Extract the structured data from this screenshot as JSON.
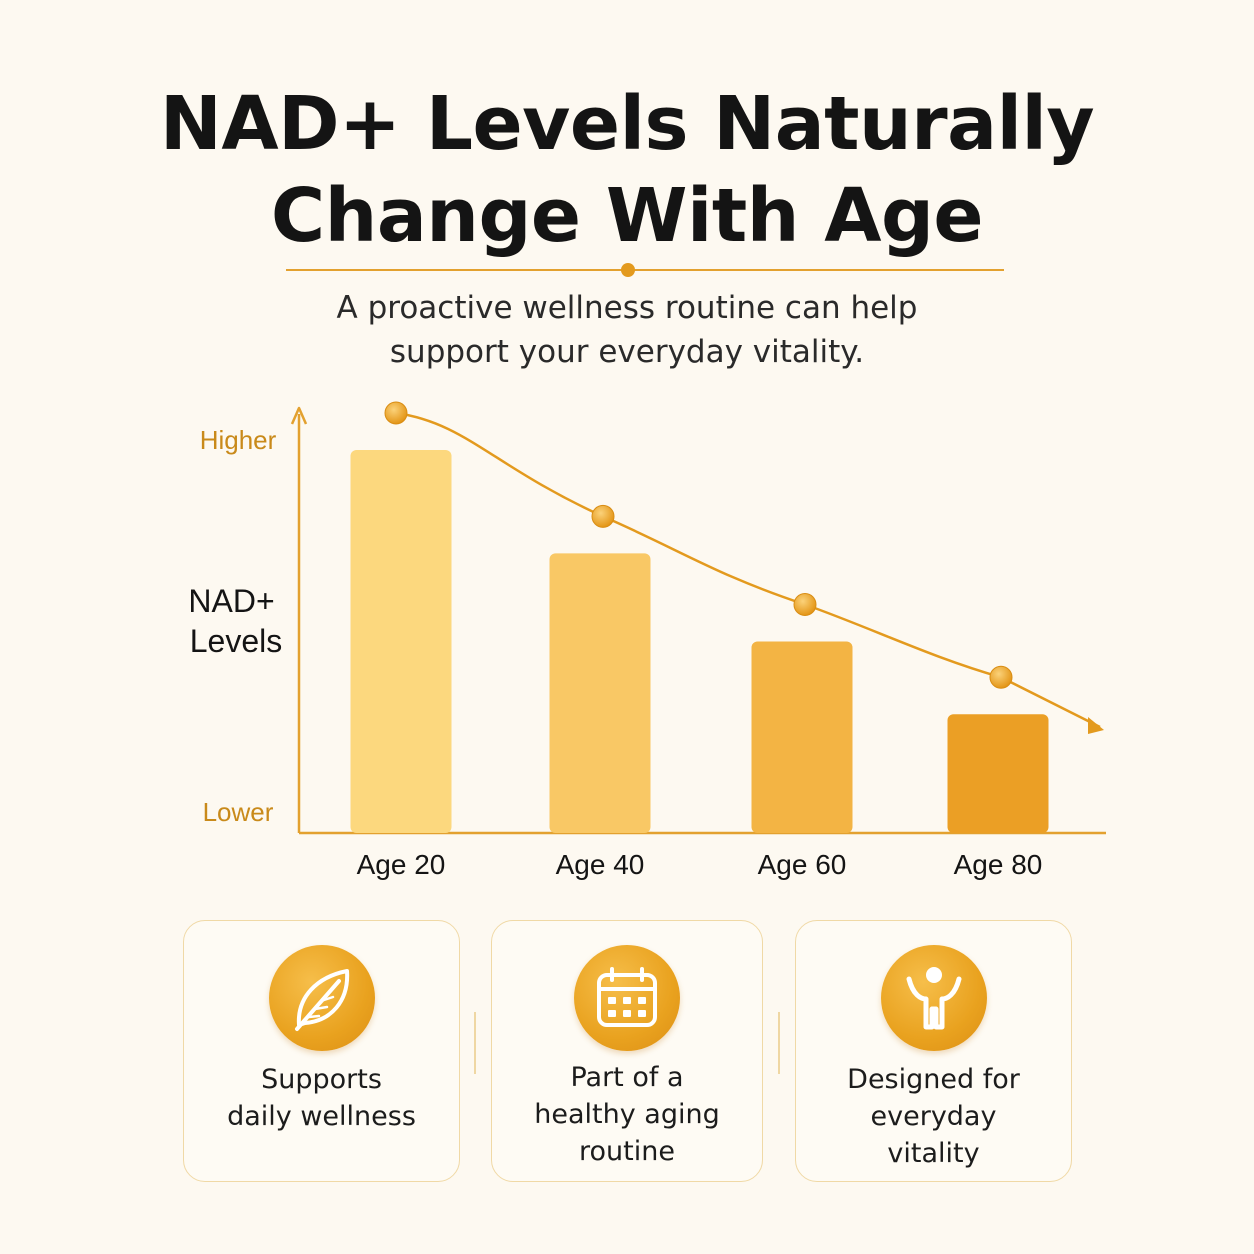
{
  "title": {
    "line1": "NAD+ Levels Naturally",
    "line2": "Change With Age"
  },
  "subtitle": {
    "line1": "A proactive wellness routine can help",
    "line2": "support your everyday vitality."
  },
  "colors": {
    "accent": "#e39a1e",
    "axis": "#e3a12f",
    "label_gold": "#c98a1a"
  },
  "chart_data": {
    "type": "bar",
    "categories": [
      "Age 20",
      "Age 40",
      "Age 60",
      "Age 80"
    ],
    "values": [
      100,
      73,
      50,
      31
    ],
    "ylabel": "NAD+\nLevels",
    "ylabel_lines": [
      "NAD+",
      "Levels"
    ],
    "y_high_label": "Higher",
    "y_low_label": "Lower",
    "ylim": [
      0,
      100
    ],
    "trend_line": true,
    "bar_colors": [
      "#fcd87e",
      "#f9c865",
      "#f3b444",
      "#eb9f25"
    ],
    "grid": false
  },
  "cards": [
    {
      "icon": "leaf-icon",
      "lines": [
        "Supports",
        "daily wellness"
      ]
    },
    {
      "icon": "calendar-icon",
      "lines": [
        "Part of a",
        "healthy aging",
        "routine"
      ]
    },
    {
      "icon": "person-arms-up-icon",
      "lines": [
        "Designed for",
        "everyday",
        "vitality"
      ]
    }
  ]
}
